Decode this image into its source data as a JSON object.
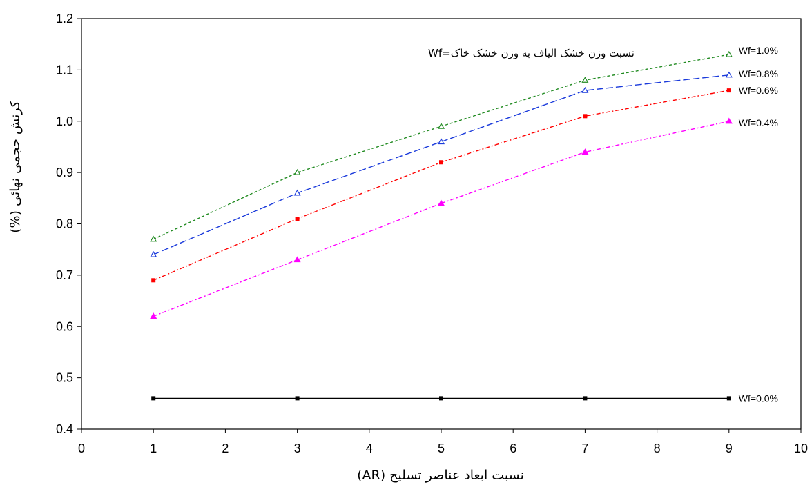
{
  "chart_data": {
    "type": "line",
    "title": "",
    "annotation": "نسبت وزن خشک الیاف به وزن خشک خاک=Wf",
    "xlabel": "نسبت ابعاد عناصر تسلیح (AR)",
    "ylabel": "کرنش حجمی نهائی (%)",
    "xlim": [
      0,
      10
    ],
    "ylim": [
      0.4,
      1.2
    ],
    "x_ticks": [
      "0",
      "1",
      "2",
      "3",
      "4",
      "5",
      "6",
      "7",
      "8",
      "9",
      "10"
    ],
    "y_ticks": [
      "0.4",
      "0.5",
      "0.6",
      "0.7",
      "0.8",
      "0.9",
      "1.0",
      "1.1",
      "1.2"
    ],
    "grid": false,
    "x": [
      1,
      3,
      5,
      7,
      9
    ],
    "series": [
      {
        "name": "Wf=1.0%",
        "values": [
          0.77,
          0.9,
          0.99,
          1.08,
          1.13
        ],
        "color": "#228b22",
        "marker": "triangle-open",
        "dash": "4,3"
      },
      {
        "name": "Wf=0.8%",
        "values": [
          0.74,
          0.86,
          0.96,
          1.06,
          1.09
        ],
        "color": "#1a3adb",
        "marker": "triangle-open",
        "dash": "10,4"
      },
      {
        "name": "Wf=0.6%",
        "values": [
          0.69,
          0.81,
          0.92,
          1.01,
          1.06
        ],
        "color": "#ff0000",
        "marker": "square",
        "dash": "6,3,2,3"
      },
      {
        "name": "Wf=0.4%",
        "values": [
          0.62,
          0.73,
          0.84,
          0.94,
          1.0
        ],
        "color": "#ff00ff",
        "marker": "triangle",
        "dash": "6,3,2,3"
      },
      {
        "name": "Wf=0.0%",
        "values": [
          0.46,
          0.46,
          0.46,
          0.46,
          0.46
        ],
        "color": "#000000",
        "marker": "square",
        "dash": ""
      }
    ]
  }
}
